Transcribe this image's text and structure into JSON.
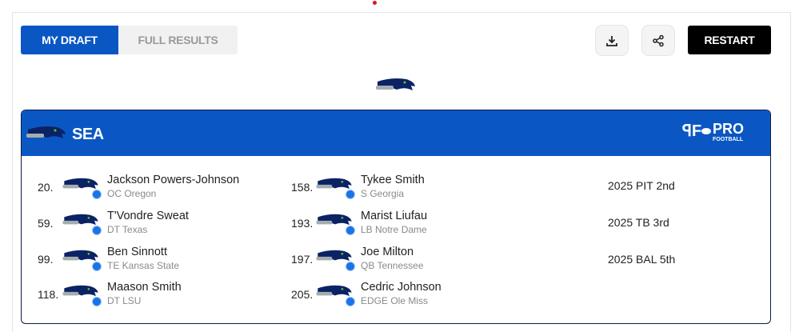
{
  "tabs": [
    {
      "label": "MY DRAFT",
      "active": true
    },
    {
      "label": "FULL RESULTS",
      "active": false
    }
  ],
  "toolbar": {
    "download_icon": "download-icon",
    "share_icon": "share-icon",
    "restart_label": "RESTART"
  },
  "team": {
    "abbr": "SEA",
    "logo": "seahawks-logo",
    "brand_color": "#0a57c4"
  },
  "partner_logo": {
    "text": "PRO FOOTBALL NETWORK"
  },
  "picks": [
    {
      "number": "20.",
      "name": "Jackson Powers-Johnson",
      "detail": "OC Oregon"
    },
    {
      "number": "59.",
      "name": "T'Vondre Sweat",
      "detail": "DT Texas"
    },
    {
      "number": "99.",
      "name": "Ben Sinnott",
      "detail": "TE Kansas State"
    },
    {
      "number": "118.",
      "name": "Maason Smith",
      "detail": "DT LSU"
    },
    {
      "number": "158.",
      "name": "Tykee Smith",
      "detail": "S Georgia"
    },
    {
      "number": "193.",
      "name": "Marist Liufau",
      "detail": "LB Notre Dame"
    },
    {
      "number": "197.",
      "name": "Joe Milton",
      "detail": "QB Tennessee"
    },
    {
      "number": "205.",
      "name": "Cedric Johnson",
      "detail": "EDGE Ole Miss"
    }
  ],
  "future_picks": [
    "2025 PIT 2nd",
    "2025 TB 3rd",
    "2025 BAL 5th"
  ]
}
